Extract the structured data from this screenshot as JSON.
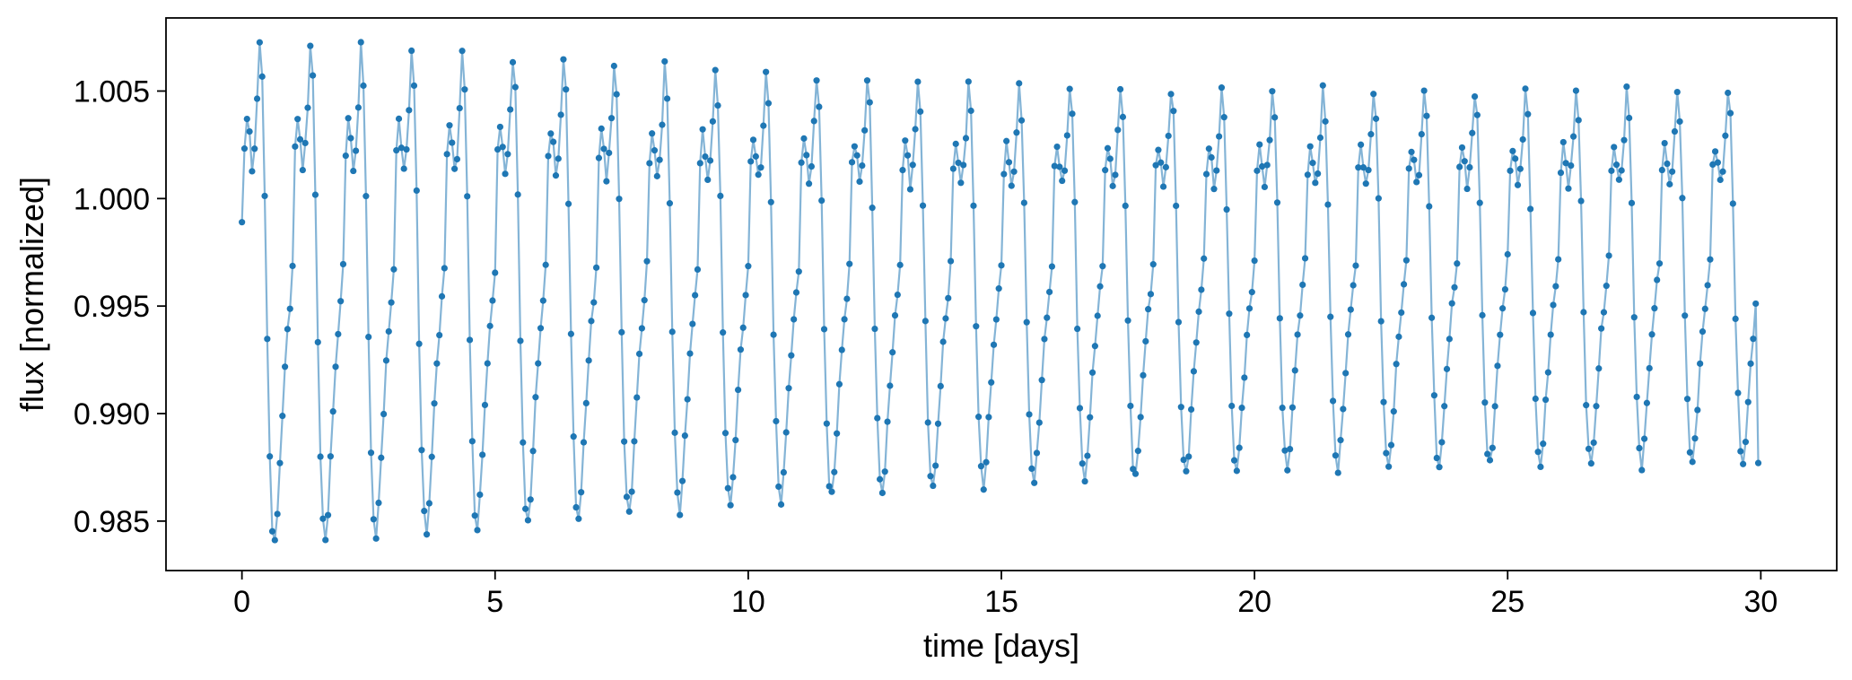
{
  "chart_data": {
    "type": "line",
    "title": "",
    "xlabel": "time [days]",
    "ylabel": "flux [normalized]",
    "xlim": [
      -1.5,
      31.5
    ],
    "ylim": [
      0.9827,
      1.0084
    ],
    "xticks": [
      0,
      5,
      10,
      15,
      20,
      25,
      30
    ],
    "xtick_labels": [
      "0",
      "5",
      "10",
      "15",
      "20",
      "25",
      "30"
    ],
    "yticks": [
      0.985,
      0.99,
      0.995,
      1.0,
      1.005
    ],
    "ytick_labels": [
      "0.985",
      "0.990",
      "0.995",
      "1.000",
      "1.005"
    ],
    "grid": false,
    "legend": "none",
    "series": [
      {
        "style": "line-with-markers",
        "color": "#1f77b4",
        "sampling_interval_days": 0.05,
        "period_days": 1.0,
        "x_range": [
          0,
          30
        ],
        "envelope": [
          {
            "t": 0.45,
            "max": 1.0073,
            "min": 0.9839
          },
          {
            "t": 5.4,
            "max": 1.0066,
            "min": 0.9848
          },
          {
            "t": 10.4,
            "max": 1.0058,
            "min": 0.9859
          },
          {
            "t": 15.4,
            "max": 1.0052,
            "min": 0.9868
          },
          {
            "t": 20.4,
            "max": 1.005,
            "min": 0.9874
          },
          {
            "t": 25.4,
            "max": 1.005,
            "min": 0.9876
          },
          {
            "t": 29.9,
            "max": 1.005,
            "min": 0.9877
          }
        ],
        "first_point": [
          0.0,
          0.9989
        ],
        "last_point": [
          29.95,
          0.9877
        ]
      }
    ]
  }
}
